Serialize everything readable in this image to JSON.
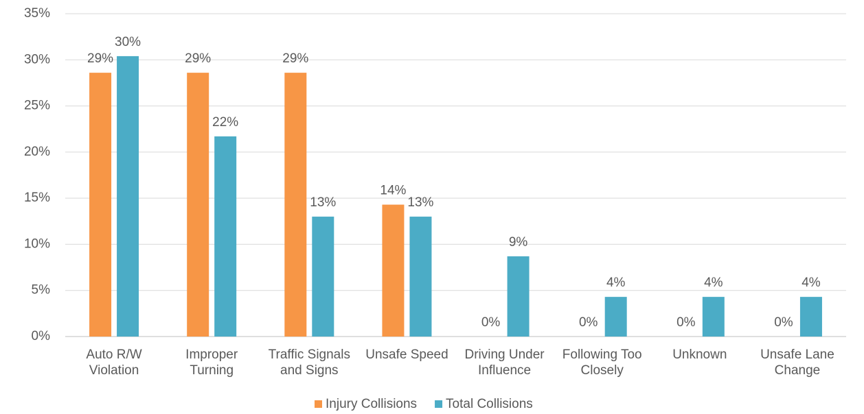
{
  "chart_data": {
    "type": "bar",
    "categories": [
      "Auto R/W\nViolation",
      "Improper\nTurning",
      "Traffic Signals\nand Signs",
      "Unsafe Speed",
      "Driving Under\nInfluence",
      "Following Too\nClosely",
      "Unknown",
      "Unsafe Lane\nChange"
    ],
    "series": [
      {
        "name": "Injury Collisions",
        "color": "#f79646",
        "values": [
          28.6,
          28.6,
          28.6,
          14.3,
          0,
          0,
          0,
          0
        ],
        "value_labels": [
          "29%",
          "29%",
          "29%",
          "14%",
          "0%",
          "0%",
          "0%",
          "0%"
        ]
      },
      {
        "name": "Total Collisions",
        "color": "#4bacc6",
        "values": [
          30.4,
          21.7,
          13.0,
          13.0,
          8.7,
          4.3,
          4.3,
          4.3
        ],
        "value_labels": [
          "30%",
          "22%",
          "13%",
          "13%",
          "9%",
          "4%",
          "4%",
          "4%"
        ]
      }
    ],
    "ylim": [
      0,
      35
    ],
    "yticks": [
      {
        "value": 0,
        "label": "0%"
      },
      {
        "value": 5,
        "label": "5%"
      },
      {
        "value": 10,
        "label": "10%"
      },
      {
        "value": 15,
        "label": "15%"
      },
      {
        "value": 20,
        "label": "20%"
      },
      {
        "value": 25,
        "label": "25%"
      },
      {
        "value": 30,
        "label": "30%"
      },
      {
        "value": 35,
        "label": "35%"
      }
    ],
    "grid": true,
    "legend": "bottom"
  }
}
